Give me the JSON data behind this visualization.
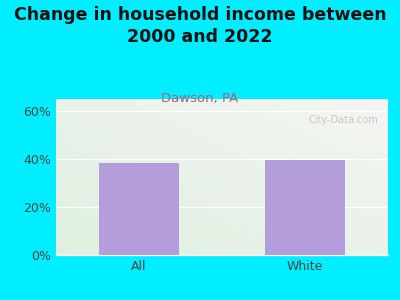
{
  "title": "Change in household income between\n2000 and 2022",
  "subtitle": "Dawson, PA",
  "categories": [
    "All",
    "White"
  ],
  "values": [
    38.5,
    39.5
  ],
  "bar_color": "#b39ddb",
  "title_fontsize": 12.5,
  "subtitle_fontsize": 9.5,
  "subtitle_color": "#b06070",
  "tick_label_fontsize": 9,
  "ylabel_ticks": [
    "0%",
    "20%",
    "40%",
    "60%"
  ],
  "ytick_vals": [
    0,
    20,
    40,
    60
  ],
  "ylim": [
    0,
    65
  ],
  "bg_outer": "#00eeff",
  "bg_plot_topleft": "#e8f5e9",
  "bg_plot_topright": "#f0f0ee",
  "bg_plot_bottom": "#dff0e0",
  "watermark": "City-Data.com"
}
